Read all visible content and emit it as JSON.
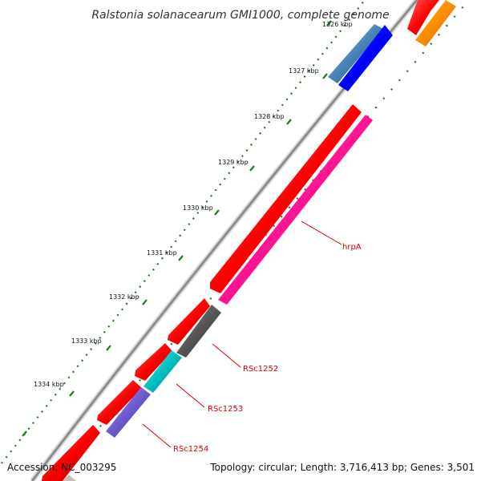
{
  "title": "Ralstonia solanacearum GMI1000, complete genome",
  "footer": {
    "accession": "Accession: NC_003295",
    "summary": "Topology: circular; Length: 3,716,413 bp; Genes: 3,501"
  },
  "ruler": {
    "unit": "kbp",
    "ticks": [
      {
        "label": "1326 kbp"
      },
      {
        "label": "1327 kbp"
      },
      {
        "label": "1328 kbp"
      },
      {
        "label": "1329 kbp"
      },
      {
        "label": "1330 kbp"
      },
      {
        "label": "1331 kbp"
      },
      {
        "label": "1332 kbp"
      },
      {
        "label": "1333 kbp"
      },
      {
        "label": "1334 kbp"
      }
    ]
  },
  "gene_labels": {
    "hrpA": "hrpA",
    "RSc1252": "RSc1252",
    "RSc1253": "RSc1253",
    "RSc1254": "RSc1254"
  },
  "colors": {
    "background": "#ffffff",
    "backbone": "#999999",
    "cds_forward": "#ff0000",
    "cds_orange": "#ff8c00",
    "cds_steelblue": "#4682b4",
    "cds_blue": "#0000ff",
    "hrpA": "#ff1493",
    "RSc1252": "#555555",
    "RSc1253": "#00bfbf",
    "RSc1254": "#6a5acd",
    "tick": "#1a7f1a",
    "label": "#d40000"
  }
}
